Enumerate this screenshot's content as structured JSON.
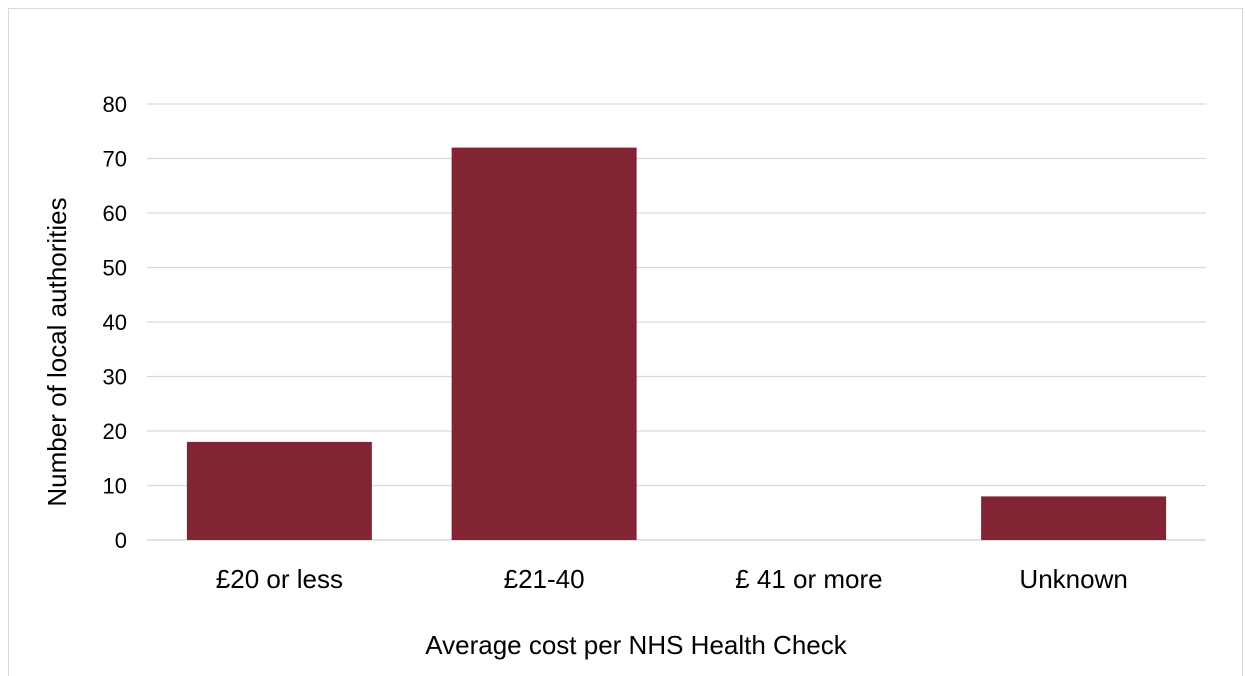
{
  "chart_data": {
    "type": "bar",
    "categories": [
      "£20 or less",
      "£21-40",
      "£ 41 or more",
      "Unknown"
    ],
    "values": [
      18,
      72,
      0,
      8
    ],
    "xlabel": "Average cost per NHS Health Check",
    "ylabel": "Number of local authorities",
    "ylim": [
      0,
      80
    ],
    "yticks": [
      0,
      10,
      20,
      30,
      40,
      50,
      60,
      70,
      80
    ],
    "grid": true,
    "legend": "none",
    "bar_color": "#822433",
    "grid_color": "#d9d9d9"
  }
}
